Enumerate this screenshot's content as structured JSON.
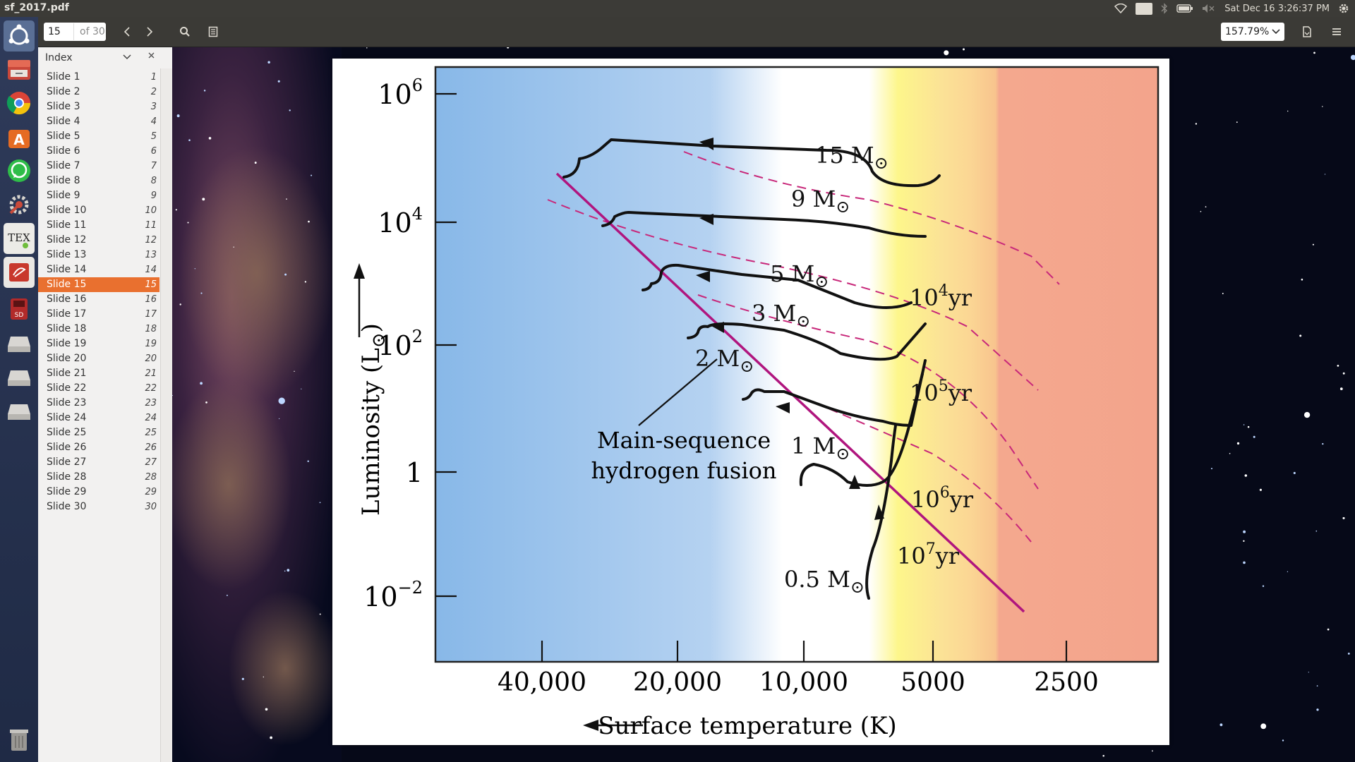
{
  "window": {
    "title": "sf_2017.pdf"
  },
  "tray": {
    "keyboard": "En",
    "clock": "Sat Dec 16  3:26:37 PM",
    "icons": [
      "wifi-icon",
      "keyboard-icon",
      "bluetooth-icon",
      "battery-icon",
      "volume-icon",
      "settings-icon"
    ]
  },
  "launcher": {
    "items": [
      "ubuntu-dash-icon",
      "files-icon",
      "chrome-icon",
      "software-center-icon",
      "whatsapp-icon",
      "system-settings-icon",
      "tex-icon",
      "document-viewer-icon",
      "sd-card-icon",
      "drive-icon",
      "drive-icon",
      "drive-icon",
      "trash-icon"
    ]
  },
  "toolbar": {
    "page_value": "15",
    "page_total": "of 30",
    "zoom": "157.79%"
  },
  "sidebar": {
    "title": "Index",
    "items": [
      {
        "label": "Slide 1",
        "num": "1"
      },
      {
        "label": "Slide 2",
        "num": "2"
      },
      {
        "label": "Slide 3",
        "num": "3"
      },
      {
        "label": "Slide 4",
        "num": "4"
      },
      {
        "label": "Slide 5",
        "num": "5"
      },
      {
        "label": "Slide 6",
        "num": "6"
      },
      {
        "label": "Slide 7",
        "num": "7"
      },
      {
        "label": "Slide 8",
        "num": "8"
      },
      {
        "label": "Slide 9",
        "num": "9"
      },
      {
        "label": "Slide 10",
        "num": "10"
      },
      {
        "label": "Slide 11",
        "num": "11"
      },
      {
        "label": "Slide 12",
        "num": "12"
      },
      {
        "label": "Slide 13",
        "num": "13"
      },
      {
        "label": "Slide 14",
        "num": "14"
      },
      {
        "label": "Slide 15",
        "num": "15"
      },
      {
        "label": "Slide 16",
        "num": "16"
      },
      {
        "label": "Slide 17",
        "num": "17"
      },
      {
        "label": "Slide 18",
        "num": "18"
      },
      {
        "label": "Slide 19",
        "num": "19"
      },
      {
        "label": "Slide 20",
        "num": "20"
      },
      {
        "label": "Slide 21",
        "num": "21"
      },
      {
        "label": "Slide 22",
        "num": "22"
      },
      {
        "label": "Slide 23",
        "num": "23"
      },
      {
        "label": "Slide 24",
        "num": "24"
      },
      {
        "label": "Slide 25",
        "num": "25"
      },
      {
        "label": "Slide 26",
        "num": "26"
      },
      {
        "label": "Slide 27",
        "num": "27"
      },
      {
        "label": "Slide 28",
        "num": "28"
      },
      {
        "label": "Slide 29",
        "num": "29"
      },
      {
        "label": "Slide 30",
        "num": "30"
      }
    ],
    "active_index": 14
  },
  "figure": {
    "ylabel": "Luminosity (L",
    "ylabel_sub": "⊙",
    "ylabel_tail": ")",
    "xlabel": "Surface temperature (K)",
    "yticks": [
      {
        "base": "10",
        "exp": "6"
      },
      {
        "base": "10",
        "exp": "4"
      },
      {
        "base": "10",
        "exp": "2"
      },
      {
        "base": "1",
        "exp": ""
      },
      {
        "base": "10",
        "exp": "−2"
      }
    ],
    "xticks": [
      "40,000",
      "20,000",
      "10,000",
      "5000",
      "2500"
    ],
    "mass_labels": [
      "15 M",
      "9 M",
      "5 M",
      "3 M",
      "2 M",
      "1 M",
      "0.5 M"
    ],
    "sun_symbol": "⊙",
    "isochrones": [
      {
        "base": "10",
        "exp": "4",
        "unit": "yr"
      },
      {
        "base": "10",
        "exp": "5",
        "unit": "yr"
      },
      {
        "base": "10",
        "exp": "6",
        "unit": "yr"
      },
      {
        "base": "10",
        "exp": "7",
        "unit": "yr"
      }
    ],
    "main_sequence_label_1": "Main-sequence",
    "main_sequence_label_2": "hydrogen fusion"
  },
  "chart_data": {
    "type": "line",
    "xlabel": "Surface temperature (K)",
    "ylabel": "Luminosity (L⊙)",
    "x_scale": "log",
    "x_reversed": true,
    "y_scale": "log",
    "x_ticks": [
      40000,
      20000,
      10000,
      5000,
      2500
    ],
    "y_ticks": [
      1000000,
      10000,
      100,
      1,
      0.01
    ],
    "series": [
      {
        "name": "15 M⊙",
        "x": [
          6000,
          4500
        ],
        "y": [
          80000,
          50000
        ]
      },
      {
        "name": "9 M⊙",
        "x": [
          5500,
          4100
        ],
        "y": [
          8000,
          7000
        ]
      },
      {
        "name": "5 M⊙",
        "x": [
          4800,
          4300
        ],
        "y": [
          800,
          600
        ]
      },
      {
        "name": "3 M⊙",
        "x": [
          4300,
          4000
        ],
        "y": [
          200,
          100
        ]
      },
      {
        "name": "2 M⊙",
        "x": [
          8500,
          4800
        ],
        "y": [
          20,
          4
        ]
      },
      {
        "name": "1 M⊙",
        "x": [
          5800,
          4500
        ],
        "y": [
          2,
          0.5
        ]
      },
      {
        "name": "0.5 M⊙",
        "x": [
          3700,
          3500
        ],
        "y": [
          0.1,
          0.02
        ]
      }
    ],
    "isochrone_labels": [
      "10^4 yr",
      "10^5 yr",
      "10^6 yr",
      "10^7 yr"
    ],
    "annotation": "Main-sequence hydrogen fusion",
    "background_bands": [
      "#8bbbe8",
      "#ffffff",
      "#fdf78a",
      "#fbd690",
      "#f5a98f"
    ]
  }
}
